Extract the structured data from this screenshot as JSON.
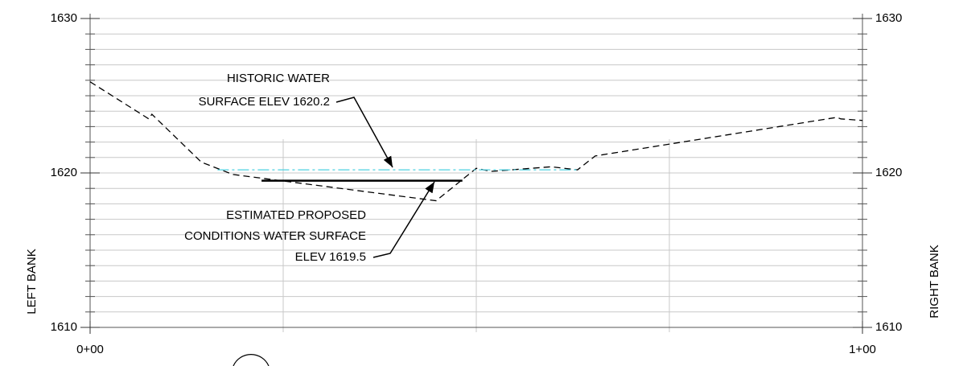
{
  "chart_data": {
    "type": "line",
    "xlim": [
      0,
      100
    ],
    "ylim": [
      1610,
      1630
    ],
    "xticks": [
      {
        "value": 0,
        "label": "0+00"
      },
      {
        "value": 100,
        "label": "1+00"
      }
    ],
    "xgrid": [
      25,
      50,
      75
    ],
    "yticks": [
      1610,
      1620,
      1630
    ],
    "yminorticks": [
      1610,
      1611,
      1612,
      1613,
      1614,
      1615,
      1616,
      1617,
      1618,
      1619,
      1620,
      1621,
      1622,
      1623,
      1624,
      1625,
      1626,
      1627,
      1628,
      1629,
      1630
    ],
    "ylabel_left": "LEFT BANK",
    "ylabel_right": "RIGHT BANK",
    "series": [
      {
        "color": "#000000",
        "dash": "8 5",
        "x": [
          0,
          7.6,
          8.0,
          14.4,
          18.5,
          44.8,
          50.0,
          51.9,
          59.7,
          63.1,
          65.4,
          96.7,
          97.2,
          100
        ],
        "values": [
          1625.9,
          1623.5,
          1623.8,
          1620.7,
          1619.9,
          1618.2,
          1620.3,
          1620.1,
          1620.4,
          1620.2,
          1621.1,
          1623.6,
          1623.5,
          1623.4
        ]
      },
      {
        "color": "#4dd0e1",
        "dash": "14 4 3 4",
        "x": [
          16.5,
          63.3
        ],
        "values": [
          1620.2,
          1620.2
        ]
      },
      {
        "color": "#000000",
        "dash": "none",
        "x": [
          22.2,
          48.2
        ],
        "values": [
          1619.5,
          1619.5
        ]
      }
    ],
    "annotations": [
      {
        "lines": [
          "HISTORIC WATER",
          "SURFACE ELEV 1620.2"
        ]
      },
      {
        "lines": [
          "ESTIMATED PROPOSED",
          "CONDITIONS WATER SURFACE",
          "ELEV 1619.5"
        ]
      }
    ]
  }
}
